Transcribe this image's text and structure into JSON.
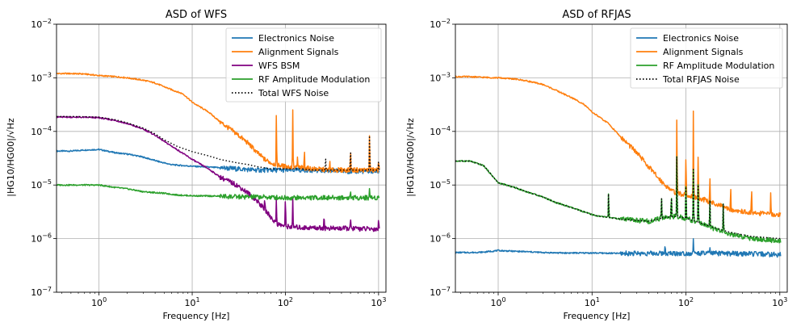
{
  "chart_data": [
    {
      "type": "line",
      "title": "ASD of WFS",
      "xlabel": "Frequency [Hz]",
      "ylabel": "|HG10/HG00|/√Hz",
      "xscale": "log",
      "yscale": "log",
      "xlim": [
        0.35,
        1200
      ],
      "ylim": [
        1e-07,
        0.01
      ],
      "xticks": [
        "10^0",
        "10^1",
        "10^2",
        "10^3"
      ],
      "yticks": [
        "10^-7",
        "10^-6",
        "10^-5",
        "10^-4",
        "10^-3",
        "10^-2"
      ],
      "grid": true,
      "legend_position": "top-right",
      "series": [
        {
          "name": "Electronics Noise",
          "color": "#1f77b4",
          "x": [
            0.35,
            0.5,
            0.7,
            1.0,
            1.5,
            2.2,
            3.0,
            4.5,
            6.0,
            8.0,
            12,
            20,
            30,
            50,
            80,
            120,
            200,
            300,
            500,
            800,
            1000
          ],
          "y": [
            4.3e-05,
            4.3e-05,
            4.5e-05,
            4.6e-05,
            4e-05,
            3.7e-05,
            3.3e-05,
            2.7e-05,
            2.4e-05,
            2.3e-05,
            2.2e-05,
            2.1e-05,
            2e-05,
            1.9e-05,
            1.9e-05,
            1.9e-05,
            1.9e-05,
            1.85e-05,
            1.8e-05,
            1.8e-05,
            1.8e-05
          ]
        },
        {
          "name": "Alignment Signals",
          "color": "#ff7f0e",
          "x": [
            0.35,
            0.5,
            0.7,
            1.0,
            1.5,
            2.0,
            3.0,
            4.0,
            6.0,
            8.0,
            10,
            15,
            20,
            30,
            40,
            50,
            60,
            70,
            80,
            100,
            150,
            200,
            300,
            500,
            1000
          ],
          "y": [
            0.0012,
            0.0012,
            0.00118,
            0.0011,
            0.00105,
            0.001,
            0.0009,
            0.0008,
            0.0006,
            0.0005,
            0.00035,
            0.00023,
            0.00015,
            9e-05,
            6e-05,
            4e-05,
            3e-05,
            2.6e-05,
            2.4e-05,
            2.2e-05,
            2.1e-05,
            2e-05,
            1.9e-05,
            1.9e-05,
            1.9e-05
          ],
          "peaks": [
            [
              80,
              0.00025
            ],
            [
              100,
              2.5e-05
            ],
            [
              120,
              0.00026
            ],
            [
              135,
              3.5e-05
            ],
            [
              160,
              5e-05
            ],
            [
              300,
              3e-05
            ],
            [
              500,
              5e-05
            ],
            [
              800,
              0.0001
            ],
            [
              1000,
              3e-05
            ]
          ]
        },
        {
          "name": "WFS BSM",
          "color": "#800080",
          "x": [
            0.35,
            0.5,
            0.7,
            1.0,
            1.5,
            2.0,
            3.0,
            4.0,
            5.0,
            7.0,
            10,
            15,
            20,
            30,
            40,
            50,
            60,
            70,
            80,
            100,
            150,
            200,
            300,
            500,
            1000
          ],
          "y": [
            0.000185,
            0.000185,
            0.000183,
            0.00018,
            0.00016,
            0.00014,
            0.00011,
            8.5e-05,
            6.5e-05,
            4.5e-05,
            3e-05,
            2e-05,
            1.4e-05,
            1e-05,
            7e-06,
            5e-06,
            3.5e-06,
            2.5e-06,
            1.9e-06,
            1.7e-06,
            1.6e-06,
            1.6e-06,
            1.55e-06,
            1.55e-06,
            1.5e-06
          ],
          "peaks": [
            [
              60,
              6e-06
            ],
            [
              80,
              6e-06
            ],
            [
              100,
              7e-06
            ],
            [
              120,
              6e-06
            ],
            [
              260,
              3e-06
            ],
            [
              500,
              2.5e-06
            ],
            [
              1000,
              2.5e-06
            ]
          ]
        },
        {
          "name": "RF Amplitude Modulation",
          "color": "#2ca02c",
          "x": [
            0.35,
            0.5,
            0.7,
            1.0,
            1.5,
            2.0,
            3.0,
            5.0,
            7.0,
            10,
            20,
            30,
            50,
            100,
            200,
            300,
            500,
            1000
          ],
          "y": [
            1e-05,
            1e-05,
            1e-05,
            1e-05,
            9e-06,
            8.5e-06,
            7.5e-06,
            7e-06,
            6.5e-06,
            6.3e-06,
            6.2e-06,
            6e-06,
            6e-06,
            5.8e-06,
            5.8e-06,
            5.8e-06,
            5.8e-06,
            5.8e-06
          ],
          "peaks": [
            [
              500,
              8e-06
            ],
            [
              800,
              9e-06
            ]
          ]
        },
        {
          "name": "Total WFS Noise",
          "color": "#000000",
          "dashed": true,
          "x": [
            0.35,
            0.5,
            0.7,
            1.0,
            1.5,
            2.0,
            3.0,
            4.0,
            5.0,
            7.0,
            10,
            15,
            20,
            30,
            40,
            50,
            60,
            70,
            80,
            100,
            150,
            200,
            300,
            500,
            1000
          ],
          "y": [
            0.00019,
            0.00019,
            0.000188,
            0.000185,
            0.000165,
            0.000145,
            0.000115,
            9e-05,
            7e-05,
            5.2e-05,
            4.2e-05,
            3.5e-05,
            3e-05,
            2.6e-05,
            2.4e-05,
            2.2e-05,
            2.1e-05,
            2e-05,
            2e-05,
            2e-05,
            2e-05,
            1.9e-05,
            1.9e-05,
            1.9e-05,
            1.9e-05
          ],
          "peaks": [
            [
              270,
              3.5e-05
            ],
            [
              500,
              5e-05
            ],
            [
              800,
              0.0001
            ],
            [
              1000,
              3e-05
            ]
          ]
        }
      ]
    },
    {
      "type": "line",
      "title": "ASD of RFJAS",
      "xlabel": "Frequency [Hz]",
      "ylabel": "|HG10/HG00|/√Hz",
      "xscale": "log",
      "yscale": "log",
      "xlim": [
        0.35,
        1200
      ],
      "ylim": [
        1e-07,
        0.01
      ],
      "xticks": [
        "10^0",
        "10^1",
        "10^2",
        "10^3"
      ],
      "yticks": [
        "10^-7",
        "10^-6",
        "10^-5",
        "10^-4",
        "10^-3",
        "10^-2"
      ],
      "grid": true,
      "legend_position": "top-right",
      "series": [
        {
          "name": "Electronics Noise",
          "color": "#1f77b4",
          "x": [
            0.35,
            0.5,
            0.7,
            1.0,
            1.5,
            2.0,
            3.0,
            5.0,
            10,
            20,
            50,
            100,
            200,
            500,
            1000
          ],
          "y": [
            5.5e-07,
            5.5e-07,
            5.6e-07,
            6e-07,
            5.8e-07,
            5.7e-07,
            5.5e-07,
            5.4e-07,
            5.4e-07,
            5.3e-07,
            5.3e-07,
            5.3e-07,
            5.3e-07,
            5.2e-07,
            5e-07
          ],
          "peaks": [
            [
              60,
              8e-07
            ],
            [
              120,
              1e-06
            ],
            [
              180,
              7e-07
            ]
          ]
        },
        {
          "name": "Alignment Signals",
          "color": "#ff7f0e",
          "x": [
            0.35,
            0.5,
            0.7,
            1.0,
            1.5,
            2.0,
            3.0,
            4.0,
            6.0,
            8.0,
            10,
            15,
            20,
            30,
            40,
            50,
            60,
            70,
            80,
            100,
            150,
            200,
            300,
            500,
            1000
          ],
          "y": [
            0.00105,
            0.00105,
            0.00102,
            0.001,
            0.00095,
            0.00088,
            0.00075,
            0.0006,
            0.00043,
            0.00033,
            0.00023,
            0.00014,
            8e-05,
            4e-05,
            2.2e-05,
            1.4e-05,
            1e-05,
            8e-06,
            7e-06,
            6.5e-06,
            5.5e-06,
            4.5e-06,
            3.5e-06,
            3e-06,
            2.8e-06
          ],
          "peaks": [
            [
              80,
              0.00023
            ],
            [
              100,
              5e-05
            ],
            [
              120,
              0.00025
            ],
            [
              135,
              4e-05
            ],
            [
              180,
              1.5e-05
            ],
            [
              300,
              1e-05
            ],
            [
              500,
              1e-05
            ],
            [
              800,
              8e-06
            ]
          ]
        },
        {
          "name": "RF Amplitude Modulation",
          "color": "#2ca02c",
          "x": [
            0.35,
            0.5,
            0.7,
            1.0,
            1.5,
            2.0,
            3.0,
            4.0,
            6.0,
            8.0,
            10,
            12,
            15,
            20,
            30,
            40,
            50,
            60,
            80,
            100,
            150,
            200,
            300,
            500,
            1000
          ],
          "y": [
            2.8e-05,
            2.8e-05,
            2.3e-05,
            1.1e-05,
            9e-06,
            7.5e-06,
            6e-06,
            4.8e-06,
            3.8e-06,
            3.2e-06,
            2.8e-06,
            2.6e-06,
            2.5e-06,
            2.3e-06,
            2.2e-06,
            2.1e-06,
            2.3e-06,
            2.5e-06,
            2.6e-06,
            2.4e-06,
            1.9e-06,
            1.5e-06,
            1.2e-06,
            1e-06,
            9e-07
          ],
          "peaks": [
            [
              15,
              8e-06
            ],
            [
              55,
              6e-06
            ],
            [
              70,
              8e-06
            ],
            [
              80,
              4.5e-05
            ],
            [
              100,
              1.5e-05
            ],
            [
              120,
              2e-05
            ],
            [
              135,
              1.2e-05
            ],
            [
              180,
              6e-06
            ],
            [
              250,
              5e-06
            ]
          ]
        },
        {
          "name": "Total RFJAS Noise",
          "color": "#000000",
          "dashed": true,
          "x": [
            0.35,
            0.5,
            0.7,
            1.0,
            1.5,
            2.0,
            3.0,
            4.0,
            6.0,
            8.0,
            10,
            12,
            15,
            20,
            30,
            40,
            50,
            60,
            80,
            100,
            150,
            200,
            300,
            500,
            1000
          ],
          "y": [
            2.8e-05,
            2.8e-05,
            2.3e-05,
            1.1e-05,
            9e-06,
            7.5e-06,
            6e-06,
            4.8e-06,
            3.8e-06,
            3.2e-06,
            2.8e-06,
            2.6e-06,
            2.5e-06,
            2.3e-06,
            2.2e-06,
            2.1e-06,
            2.3e-06,
            2.5e-06,
            2.6e-06,
            2.4e-06,
            1.9e-06,
            1.6e-06,
            1.3e-06,
            1.1e-06,
            1e-06
          ],
          "peaks": [
            [
              15,
              8e-06
            ],
            [
              55,
              6e-06
            ],
            [
              70,
              8e-06
            ],
            [
              80,
              4.5e-05
            ],
            [
              100,
              1.5e-05
            ],
            [
              120,
              2e-05
            ],
            [
              135,
              1.2e-05
            ],
            [
              180,
              6e-06
            ],
            [
              250,
              5e-06
            ]
          ]
        }
      ]
    }
  ]
}
